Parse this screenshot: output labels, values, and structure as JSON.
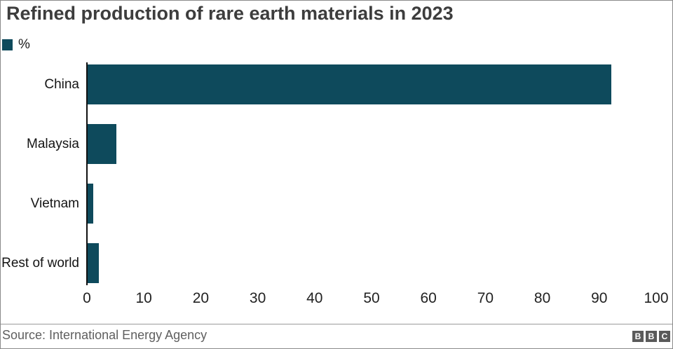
{
  "header": {
    "title": "Refined production of rare earth materials in 2023"
  },
  "legend": {
    "label": "%"
  },
  "chart_data": {
    "type": "bar",
    "orientation": "horizontal",
    "title": "Refined production of rare earth materials in 2023",
    "categories": [
      "China",
      "Malaysia",
      "Vietnam",
      "Rest of world"
    ],
    "values": [
      92,
      5,
      1,
      2
    ],
    "unit": "%",
    "legend": [
      "%"
    ],
    "xlabel": "",
    "ylabel": "",
    "xlim": [
      0,
      100
    ],
    "xtick_labels": [
      "0",
      "10",
      "20",
      "30",
      "40",
      "50",
      "60",
      "70",
      "80",
      "90",
      "100"
    ],
    "xtick_values": [
      0,
      10,
      20,
      30,
      40,
      50,
      60,
      70,
      80,
      90,
      100
    ],
    "grid": false,
    "legend_position": "top-left",
    "bar_color": "#0e4a5c",
    "axis_line_color": "#111111"
  },
  "footer": {
    "source": "Source: International Energy Agency",
    "logo_letters": [
      "B",
      "B",
      "C"
    ]
  },
  "colors": {
    "bar": "#0e4a5c",
    "title_text": "#3d3d3d",
    "tick_text": "#222222",
    "source_text": "#5f5f5f",
    "divider": "#9a9a9a",
    "logo_block": "#5a5a5a",
    "border": "#8a8a8a"
  }
}
